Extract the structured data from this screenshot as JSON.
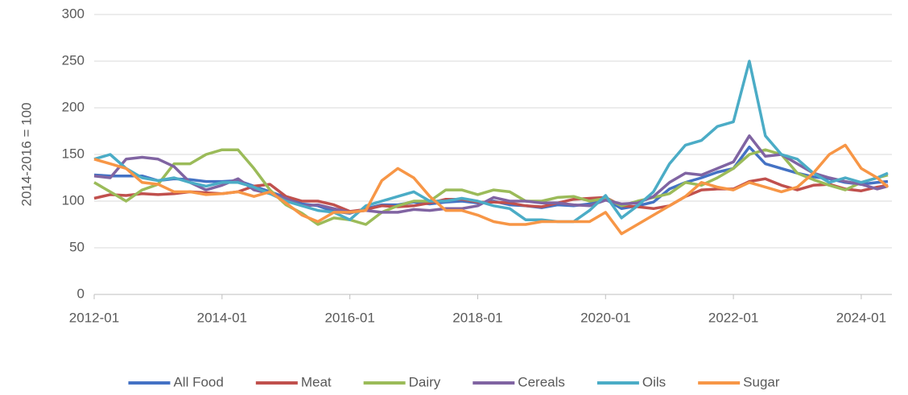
{
  "chart_data": {
    "type": "line",
    "ylabel": "2014-2016 = 100",
    "x": [
      "2012-01",
      "2012-04",
      "2012-07",
      "2012-10",
      "2013-01",
      "2013-04",
      "2013-07",
      "2013-10",
      "2014-01",
      "2014-04",
      "2014-07",
      "2014-10",
      "2015-01",
      "2015-04",
      "2015-07",
      "2015-10",
      "2016-01",
      "2016-04",
      "2016-07",
      "2016-10",
      "2017-01",
      "2017-04",
      "2017-07",
      "2017-10",
      "2018-01",
      "2018-04",
      "2018-07",
      "2018-10",
      "2019-01",
      "2019-04",
      "2019-07",
      "2019-10",
      "2020-01",
      "2020-04",
      "2020-07",
      "2020-10",
      "2021-01",
      "2021-04",
      "2021-07",
      "2021-10",
      "2022-01",
      "2022-04",
      "2022-07",
      "2022-10",
      "2023-01",
      "2023-04",
      "2023-07",
      "2023-10",
      "2024-01",
      "2024-04",
      "2024-06"
    ],
    "series": [
      {
        "name": "All Food",
        "color": "#4472c4",
        "values": [
          128,
          127,
          127,
          127,
          122,
          124,
          123,
          121,
          121,
          122,
          116,
          110,
          104,
          97,
          95,
          89,
          87,
          92,
          96,
          96,
          99,
          97,
          99,
          100,
          98,
          100,
          96,
          95,
          93,
          96,
          95,
          97,
          102,
          92,
          95,
          99,
          113,
          120,
          125,
          131,
          135,
          158,
          140,
          135,
          130,
          126,
          124,
          120,
          118,
          120,
          121
        ]
      },
      {
        "name": "Meat",
        "color": "#c0504d",
        "values": [
          103,
          107,
          106,
          108,
          107,
          108,
          110,
          109,
          108,
          110,
          116,
          118,
          105,
          100,
          100,
          96,
          89,
          91,
          95,
          94,
          95,
          98,
          102,
          102,
          99,
          99,
          98,
          95,
          94,
          98,
          102,
          103,
          104,
          95,
          94,
          92,
          95,
          105,
          112,
          113,
          113,
          121,
          124,
          117,
          112,
          117,
          118,
          113,
          111,
          115,
          117
        ]
      },
      {
        "name": "Dairy",
        "color": "#9bbb59",
        "values": [
          120,
          110,
          100,
          112,
          118,
          140,
          140,
          150,
          155,
          155,
          135,
          112,
          96,
          87,
          75,
          82,
          80,
          75,
          88,
          95,
          100,
          100,
          112,
          112,
          107,
          112,
          110,
          100,
          100,
          104,
          105,
          100,
          103,
          95,
          100,
          104,
          108,
          120,
          117,
          125,
          135,
          150,
          155,
          150,
          130,
          123,
          117,
          112,
          120,
          125,
          128
        ]
      },
      {
        "name": "Cereals",
        "color": "#8064a2",
        "values": [
          127,
          125,
          145,
          147,
          145,
          137,
          120,
          112,
          117,
          124,
          112,
          108,
          103,
          95,
          96,
          92,
          88,
          90,
          88,
          88,
          91,
          90,
          92,
          92,
          95,
          104,
          100,
          100,
          98,
          98,
          96,
          95,
          101,
          97,
          98,
          105,
          120,
          130,
          128,
          135,
          142,
          170,
          148,
          150,
          140,
          130,
          125,
          121,
          118,
          113,
          116
        ]
      },
      {
        "name": "Oils",
        "color": "#4bacc6",
        "values": [
          145,
          150,
          135,
          125,
          122,
          125,
          120,
          116,
          120,
          120,
          115,
          108,
          100,
          95,
          90,
          88,
          80,
          95,
          100,
          105,
          110,
          100,
          100,
          103,
          100,
          95,
          92,
          80,
          80,
          78,
          78,
          90,
          106,
          82,
          95,
          110,
          140,
          160,
          165,
          180,
          185,
          250,
          170,
          150,
          145,
          130,
          120,
          125,
          120,
          125,
          130
        ]
      },
      {
        "name": "Sugar",
        "color": "#f79646",
        "values": [
          145,
          140,
          135,
          120,
          118,
          110,
          110,
          107,
          108,
          110,
          105,
          110,
          98,
          85,
          78,
          88,
          88,
          90,
          122,
          135,
          125,
          105,
          90,
          90,
          85,
          78,
          75,
          75,
          78,
          78,
          78,
          78,
          88,
          65,
          75,
          85,
          95,
          105,
          120,
          115,
          112,
          120,
          115,
          110,
          115,
          130,
          150,
          160,
          135,
          125,
          115
        ]
      }
    ],
    "xlim": [
      "2012-01",
      "2024-06"
    ],
    "xticks": [
      "2012-01",
      "2014-01",
      "2016-01",
      "2018-01",
      "2020-01",
      "2022-01",
      "2024-01"
    ],
    "ylim": [
      0,
      300
    ],
    "yticks": [
      0,
      50,
      100,
      150,
      200,
      250,
      300
    ],
    "grid": true,
    "legend": "bottom"
  }
}
